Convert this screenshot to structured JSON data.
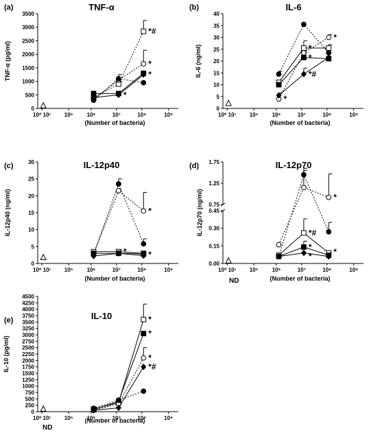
{
  "chart_data": [
    {
      "type": "line",
      "panel_label": "(a)",
      "title": "TNF-α",
      "ylabel": "TNF-α (pg/ml)",
      "xlabel": "(Number of bacteria)",
      "x_tick_labels": [
        "10⁰ 10¹",
        "10⁵",
        "10⁶",
        "10⁷",
        "10⁸",
        "10⁹"
      ],
      "y_ticks": [
        "0",
        "500",
        "1000",
        "1500",
        "2000",
        "2500",
        "3000",
        "3500"
      ],
      "ylim": [
        0,
        3500
      ],
      "control_marker": "open-triangle",
      "control_value": 0,
      "x": [
        1000000,
        10000000,
        100000000
      ],
      "series": [
        {
          "marker": "open-square",
          "line": "dotted",
          "values": [
            400,
            900,
            2850
          ],
          "errors": [
            0,
            100,
            400
          ]
        },
        {
          "marker": "open-circle",
          "line": "dotted",
          "values": [
            350,
            1050,
            1650
          ],
          "errors": [
            0,
            200,
            500
          ]
        },
        {
          "marker": "filled-circle",
          "line": "dotted",
          "values": [
            300,
            1100,
            950
          ],
          "errors": [
            0,
            0,
            0
          ]
        },
        {
          "marker": "filled-square",
          "line": "solid",
          "values": [
            550,
            550,
            1300
          ],
          "errors": [
            0,
            0,
            0
          ]
        },
        {
          "marker": "filled-diamond",
          "line": "solid",
          "values": [
            400,
            500,
            1250
          ],
          "errors": [
            0,
            0,
            0
          ]
        }
      ],
      "annotations": [
        {
          "x": 100000000,
          "y": 2850,
          "text": "*#"
        },
        {
          "x": 100000000,
          "y": 1650,
          "text": "*"
        },
        {
          "x": 100000000,
          "y": 1250,
          "text": "*"
        },
        {
          "x": 10000000,
          "y": 500,
          "text": "*"
        }
      ]
    },
    {
      "type": "line",
      "panel_label": "(b)",
      "title": "IL-6",
      "ylabel": "IL-6 (ng/ml)",
      "xlabel": "(Number of bacteria)",
      "x_tick_labels": [
        "10⁰ 10¹",
        "10⁵",
        "10⁶",
        "10⁷",
        "10⁸",
        "10⁹"
      ],
      "y_ticks": [
        "0",
        "5",
        "10",
        "15",
        "20",
        "25",
        "30",
        "35",
        "40"
      ],
      "ylim": [
        0,
        40
      ],
      "control_marker": "open-triangle",
      "control_value": 1,
      "x": [
        1000000,
        10000000,
        100000000
      ],
      "series": [
        {
          "marker": "filled-circle",
          "line": "dotted",
          "values": [
            14.5,
            35.5,
            23.5
          ],
          "errors": [
            1.2,
            0,
            0
          ]
        },
        {
          "marker": "open-square",
          "line": "solid",
          "values": [
            11,
            25.5,
            25.5
          ],
          "errors": [
            0,
            3,
            1.5
          ]
        },
        {
          "marker": "filled-square",
          "line": "solid",
          "values": [
            10,
            21.5,
            21
          ],
          "errors": [
            0,
            2,
            0
          ]
        },
        {
          "marker": "open-circle",
          "line": "dotted",
          "values": [
            4,
            23.5,
            30
          ],
          "errors": [
            0,
            0,
            1.2
          ]
        },
        {
          "marker": "filled-diamond",
          "line": "solid",
          "values": [
            5.5,
            14.5,
            21.5
          ],
          "errors": [
            1,
            2.5,
            0
          ]
        }
      ],
      "annotations": [
        {
          "x": 1000000,
          "y": 4,
          "text": "*"
        },
        {
          "x": 10000000,
          "y": 25.5,
          "text": "*"
        },
        {
          "x": 10000000,
          "y": 21.5,
          "text": "*"
        },
        {
          "x": 10000000,
          "y": 14.5,
          "text": "*#"
        },
        {
          "x": 100000000,
          "y": 30,
          "text": "*"
        }
      ]
    },
    {
      "type": "line",
      "panel_label": "(c)",
      "title": "IL-12p40",
      "ylabel": "IL-12p40 (ng/ml)",
      "xlabel": "(Number of bacteria)",
      "x_tick_labels": [
        "10⁰ 10¹",
        "10⁵",
        "10⁶",
        "10⁷",
        "10⁸",
        "10⁹"
      ],
      "y_ticks": [
        "0",
        "5",
        "10",
        "15",
        "20",
        "25",
        "30"
      ],
      "ylim": [
        0,
        30
      ],
      "control_marker": "open-triangle",
      "control_value": 1,
      "x": [
        1000000,
        10000000,
        100000000
      ],
      "series": [
        {
          "marker": "filled-circle",
          "line": "dotted",
          "values": [
            2.5,
            23.5,
            5.8
          ],
          "errors": [
            0,
            1.5,
            1.5
          ]
        },
        {
          "marker": "open-circle",
          "line": "dotted",
          "values": [
            3,
            21.5,
            15.5
          ],
          "errors": [
            0,
            0,
            5.5
          ]
        },
        {
          "marker": "open-square",
          "line": "solid",
          "values": [
            3.5,
            3.5,
            3
          ],
          "errors": [
            0,
            0.5,
            0
          ]
        },
        {
          "marker": "filled-square",
          "line": "solid",
          "values": [
            3,
            3,
            2.8
          ],
          "errors": [
            0,
            0,
            0
          ]
        },
        {
          "marker": "filled-diamond",
          "line": "solid",
          "values": [
            2.2,
            3,
            2.3
          ],
          "errors": [
            0,
            0,
            0
          ]
        }
      ],
      "annotations": [
        {
          "x": 100000000,
          "y": 15.5,
          "text": "*"
        },
        {
          "x": 10000000,
          "y": 3.5,
          "text": "*"
        },
        {
          "x": 100000000,
          "y": 2.6,
          "text": "*"
        }
      ]
    },
    {
      "type": "line",
      "panel_label": "(d)",
      "title": "IL-12p70",
      "ylabel": "IL-12p70 (ng/ml)",
      "xlabel": "(Number of bacteria)",
      "nd_label": "ND",
      "x_tick_labels": [
        "10⁰ 10¹",
        "10⁵",
        "10⁶",
        "10⁷",
        "10⁸",
        "10⁹"
      ],
      "y_ticks_lower": [
        "0.00",
        "0.15",
        "0.30",
        "0.45"
      ],
      "y_ticks_upper": [
        "0.75",
        "1.25",
        "1.75"
      ],
      "ylim": [
        0,
        1.75
      ],
      "broken_axis": true,
      "control_marker": "open-triangle",
      "control_value": 0,
      "x": [
        1000000,
        10000000,
        100000000
      ],
      "series": [
        {
          "marker": "filled-circle",
          "line": "dotted",
          "values": [
            0.06,
            1.45,
            0.27
          ],
          "errors": [
            0,
            0.1,
            0.08
          ]
        },
        {
          "marker": "open-circle",
          "line": "dotted",
          "values": [
            0.16,
            1.15,
            0.92
          ],
          "errors": [
            0,
            0.45,
            0.55
          ]
        },
        {
          "marker": "open-square",
          "line": "solid",
          "values": [
            0.07,
            0.26,
            0.09
          ],
          "errors": [
            0,
            0.12,
            0
          ]
        },
        {
          "marker": "filled-square",
          "line": "solid",
          "values": [
            0.06,
            0.14,
            0.07
          ],
          "errors": [
            0,
            0.05,
            0
          ]
        },
        {
          "marker": "filled-diamond",
          "line": "solid",
          "values": [
            0.06,
            0.09,
            0.06
          ],
          "errors": [
            0,
            0,
            0
          ]
        }
      ],
      "annotations": [
        {
          "x": 100000000,
          "y": 0.92,
          "text": "*"
        },
        {
          "x": 10000000,
          "y": 0.26,
          "text": "*#"
        },
        {
          "x": 10000000,
          "y": 0.14,
          "text": "*"
        },
        {
          "x": 10000000,
          "y": 0.06,
          "text": "*"
        },
        {
          "x": 100000000,
          "y": 0.1,
          "text": "*"
        }
      ]
    },
    {
      "type": "line",
      "panel_label": "(e)",
      "title": "IL-10",
      "ylabel": "IL-10 (pg/ml)",
      "xlabel": "(Number of bacteria)",
      "nd_label": "ND",
      "x_tick_labels": [
        "10⁰ 10¹",
        "10⁵",
        "10⁶",
        "10⁷",
        "10⁸",
        "10⁹"
      ],
      "y_ticks": [
        "0",
        "250",
        "500",
        "750",
        "1000",
        "1250",
        "1500",
        "1750",
        "2000",
        "2250",
        "2500",
        "2750",
        "3000",
        "3250",
        "3500",
        "3750",
        "4000",
        "4250",
        "4500"
      ],
      "ylim": [
        0,
        4500
      ],
      "control_marker": "open-triangle",
      "control_value": 0,
      "x": [
        1000000,
        10000000,
        100000000
      ],
      "series": [
        {
          "marker": "open-square",
          "line": "solid",
          "values": [
            100,
            350,
            3600
          ],
          "errors": [
            0,
            0,
            600
          ]
        },
        {
          "marker": "filled-square",
          "line": "solid",
          "values": [
            80,
            400,
            3050
          ],
          "errors": [
            0,
            0,
            0
          ]
        },
        {
          "marker": "open-circle",
          "line": "dotted",
          "values": [
            60,
            300,
            2100
          ],
          "errors": [
            0,
            0,
            400
          ]
        },
        {
          "marker": "filled-diamond",
          "line": "solid",
          "values": [
            50,
            150,
            1750
          ],
          "errors": [
            0,
            0,
            0
          ]
        },
        {
          "marker": "filled-circle",
          "line": "dotted",
          "values": [
            130,
            450,
            800
          ],
          "errors": [
            0,
            0,
            0
          ]
        }
      ],
      "annotations": [
        {
          "x": 100000000,
          "y": 3600,
          "text": "*"
        },
        {
          "x": 100000000,
          "y": 3050,
          "text": "*"
        },
        {
          "x": 100000000,
          "y": 2100,
          "text": "*"
        },
        {
          "x": 100000000,
          "y": 1750,
          "text": "*#"
        }
      ]
    }
  ]
}
